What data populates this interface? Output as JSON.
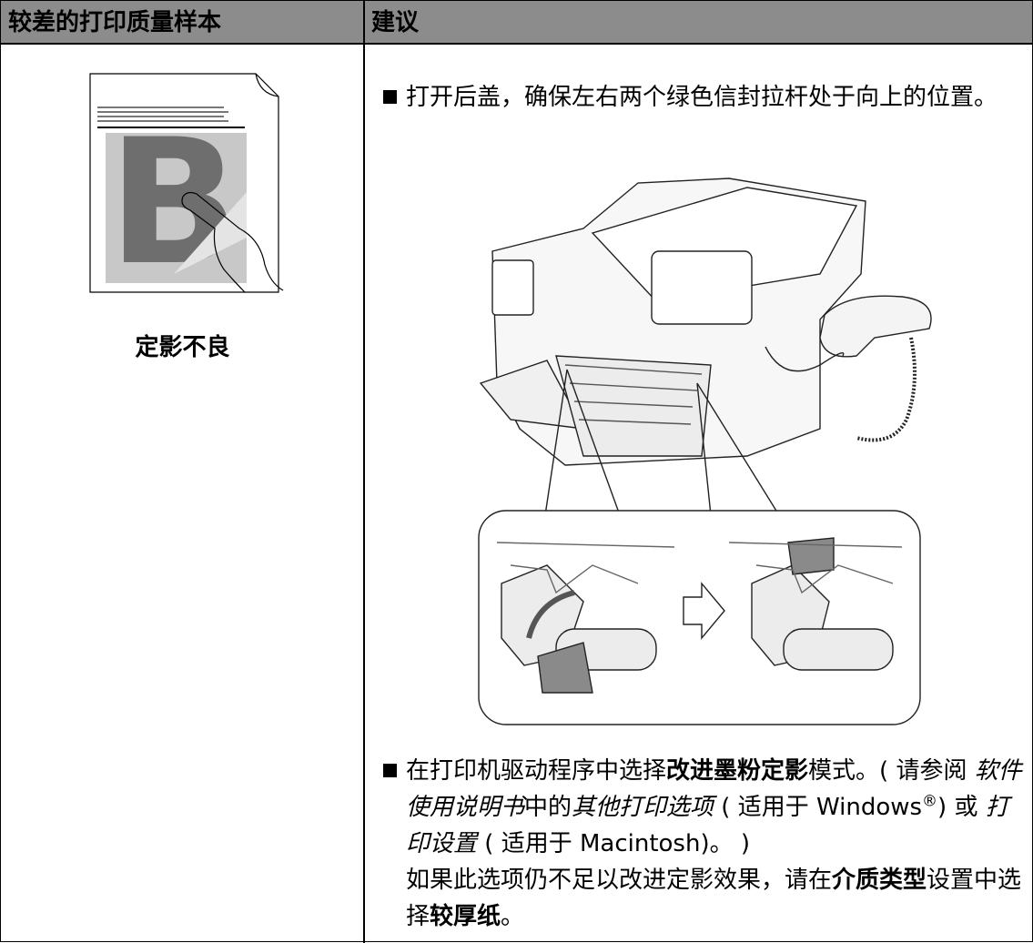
{
  "table": {
    "headers": [
      "较差的打印质量样本",
      "建议"
    ],
    "sample": {
      "caption": "定影不良"
    },
    "suggestions": [
      {
        "paragraphs": [
          [
            {
              "text": "打开后盖，确保左右两个绿色信封拉杆处于向上的位置。",
              "style": "normal"
            }
          ]
        ]
      },
      {
        "paragraphs": [
          [
            {
              "text": "在打印机驱动程序中选择",
              "style": "normal"
            },
            {
              "text": "改进墨粉定影",
              "style": "bold"
            },
            {
              "text": "模式。( 请参阅 ",
              "style": "normal"
            },
            {
              "text": "软件使用说明书",
              "style": "italic"
            },
            {
              "text": "中的",
              "style": "normal"
            },
            {
              "text": "其他打印选项",
              "style": "italic"
            },
            {
              "text": " ( 适用于 Windows",
              "style": "normal"
            },
            {
              "text": "®",
              "style": "sup"
            },
            {
              "text": ") 或 ",
              "style": "normal"
            },
            {
              "text": "打印设置",
              "style": "italic"
            },
            {
              "text": " ( 适用于 Macintosh)。 )",
              "style": "normal"
            }
          ],
          [
            {
              "text": "如果此选项仍不足以改进定影效果，请在",
              "style": "normal"
            },
            {
              "text": "介质类型",
              "style": "bold"
            },
            {
              "text": "设置中选择",
              "style": "normal"
            },
            {
              "text": "较厚纸",
              "style": "bold"
            },
            {
              "text": "。",
              "style": "normal"
            }
          ]
        ]
      }
    ]
  }
}
